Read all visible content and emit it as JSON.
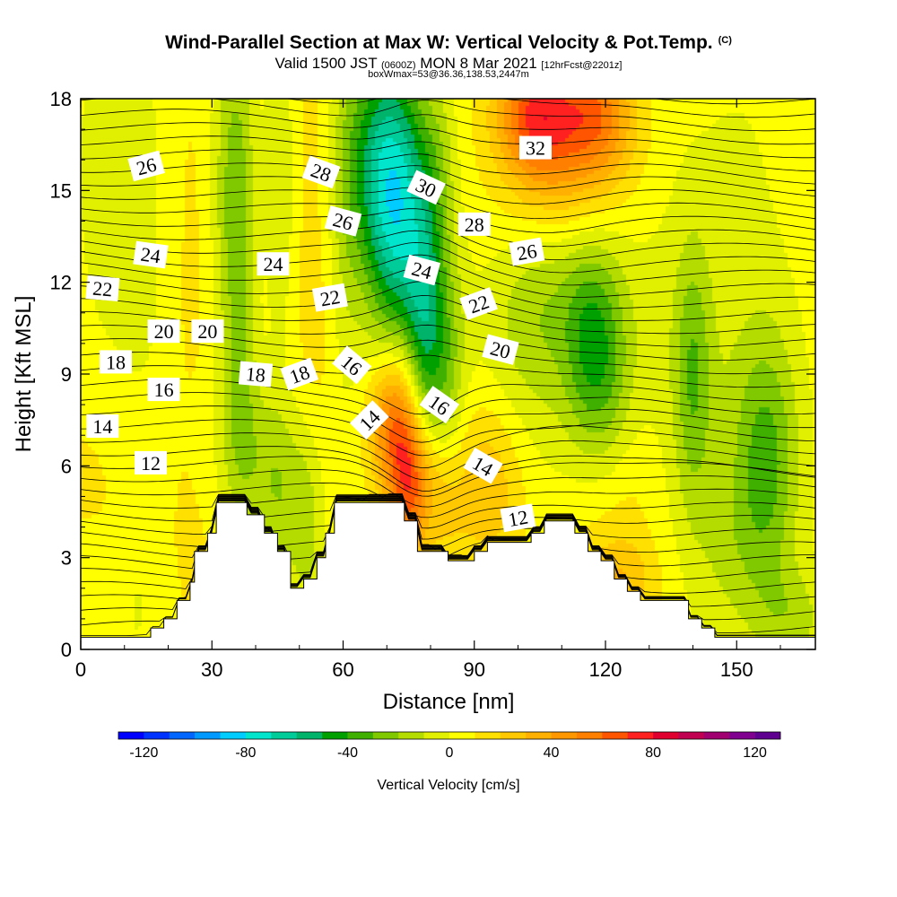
{
  "header": {
    "title": "Wind-Parallel Section at Max W: Vertical Velocity & Pot.Temp.",
    "copyright": "(C)",
    "valid_prefix": "Valid 1500 JST",
    "valid_zulu": "(0600Z)",
    "valid_date": "MON 8 Mar 2021",
    "forecast_tag": "[12hrFcst@2201z]",
    "box_info": "boxWmax=53@36.36,138.53,2447m"
  },
  "chart_data": {
    "type": "heatmap",
    "title": "Wind-Parallel Section at Max W: Vertical Velocity & Pot.Temp.",
    "xlabel": "Distance [nm]",
    "ylabel": "Height [Kft MSL]",
    "xlim": [
      0,
      168
    ],
    "ylim": [
      0,
      18
    ],
    "x_ticks": [
      "0",
      "30",
      "60",
      "90",
      "120",
      "150"
    ],
    "x_tick_values": [
      0,
      30,
      60,
      90,
      120,
      150
    ],
    "y_ticks": [
      "0",
      "3",
      "6",
      "9",
      "12",
      "15",
      "18"
    ],
    "y_tick_values": [
      0,
      3,
      6,
      9,
      12,
      15,
      18
    ],
    "colorbar": {
      "label": "Vertical Velocity [cm/s]",
      "min": -130,
      "max": 130,
      "ticks": [
        "-120",
        "-80",
        "-40",
        "0",
        "40",
        "80",
        "120"
      ],
      "tick_values": [
        -120,
        -80,
        -40,
        0,
        40,
        80,
        120
      ],
      "colors": [
        "#0000ff",
        "#0033ff",
        "#0066ff",
        "#0099ff",
        "#00ccff",
        "#00e5cc",
        "#00cc99",
        "#00b36b",
        "#00a000",
        "#40b000",
        "#80c800",
        "#b4dc00",
        "#e0f000",
        "#ffff00",
        "#ffe000",
        "#ffc800",
        "#ffb000",
        "#ff9800",
        "#ff8000",
        "#ff5500",
        "#ff2020",
        "#e00030",
        "#c00050",
        "#a00070",
        "#800090",
        "#600090"
      ]
    },
    "terrain": [
      [
        0,
        0.4
      ],
      [
        16,
        0.4
      ],
      [
        16,
        0.7
      ],
      [
        19,
        0.7
      ],
      [
        19,
        1.0
      ],
      [
        22,
        1.0
      ],
      [
        22,
        1.6
      ],
      [
        25,
        1.6
      ],
      [
        25,
        2.2
      ],
      [
        26,
        2.2
      ],
      [
        26,
        3.2
      ],
      [
        29,
        3.2
      ],
      [
        29,
        3.8
      ],
      [
        31,
        3.8
      ],
      [
        31,
        4.8
      ],
      [
        38,
        4.8
      ],
      [
        38,
        4.4
      ],
      [
        42,
        4.4
      ],
      [
        42,
        3.8
      ],
      [
        45,
        3.8
      ],
      [
        45,
        3.2
      ],
      [
        48,
        3.2
      ],
      [
        48,
        2.0
      ],
      [
        51,
        2.0
      ],
      [
        51,
        2.3
      ],
      [
        54,
        2.3
      ],
      [
        54,
        3.0
      ],
      [
        56,
        3.0
      ],
      [
        56,
        3.8
      ],
      [
        58,
        3.8
      ],
      [
        58,
        4.8
      ],
      [
        74,
        4.8
      ],
      [
        74,
        4.2
      ],
      [
        77,
        4.2
      ],
      [
        77,
        3.2
      ],
      [
        84,
        3.2
      ],
      [
        84,
        2.9
      ],
      [
        90,
        2.9
      ],
      [
        90,
        3.2
      ],
      [
        93,
        3.2
      ],
      [
        93,
        3.5
      ],
      [
        103,
        3.5
      ],
      [
        103,
        3.8
      ],
      [
        106,
        3.8
      ],
      [
        106,
        4.2
      ],
      [
        113,
        4.2
      ],
      [
        113,
        3.8
      ],
      [
        116,
        3.8
      ],
      [
        116,
        3.2
      ],
      [
        119,
        3.2
      ],
      [
        119,
        2.9
      ],
      [
        122,
        2.9
      ],
      [
        122,
        2.3
      ],
      [
        125,
        2.3
      ],
      [
        125,
        1.9
      ],
      [
        128,
        1.9
      ],
      [
        128,
        1.6
      ],
      [
        139,
        1.6
      ],
      [
        139,
        1.0
      ],
      [
        142,
        1.0
      ],
      [
        142,
        0.7
      ],
      [
        145,
        0.7
      ],
      [
        145,
        0.4
      ],
      [
        168,
        0.4
      ]
    ],
    "w_field": [
      {
        "x": 10,
        "y": 4,
        "w": 12,
        "sx": 14,
        "sy": 4
      },
      {
        "x": 2,
        "y": 1.5,
        "w": -10,
        "sx": 5,
        "sy": 2
      },
      {
        "x": 13,
        "y": 2,
        "w": -10,
        "sx": 4,
        "sy": 3
      },
      {
        "x": 17,
        "y": 11,
        "w": -12,
        "sx": 7,
        "sy": 8
      },
      {
        "x": 25,
        "y": 13,
        "w": 12,
        "sx": 6,
        "sy": 6
      },
      {
        "x": 35,
        "y": 15,
        "w": -28,
        "sx": 4,
        "sy": 4
      },
      {
        "x": 37,
        "y": 10,
        "w": -18,
        "sx": 3,
        "sy": 6
      },
      {
        "x": 41,
        "y": 14,
        "w": 14,
        "sx": 3,
        "sy": 5
      },
      {
        "x": 45,
        "y": 15,
        "w": -22,
        "sx": 3,
        "sy": 4
      },
      {
        "x": 37,
        "y": 7,
        "w": -15,
        "sx": 7,
        "sy": 2
      },
      {
        "x": 45,
        "y": 5,
        "w": -22,
        "sx": 4,
        "sy": 2
      },
      {
        "x": 52,
        "y": 4,
        "w": -22,
        "sx": 3,
        "sy": 2.5
      },
      {
        "x": 55,
        "y": 13,
        "w": 12,
        "sx": 6,
        "sy": 7
      },
      {
        "x": 60,
        "y": 12,
        "w": -14,
        "sx": 3,
        "sy": 5
      },
      {
        "x": 66,
        "y": 16,
        "w": -38,
        "sx": 6,
        "sy": 3
      },
      {
        "x": 72,
        "y": 15,
        "w": -45,
        "sx": 5,
        "sy": 3
      },
      {
        "x": 74,
        "y": 12,
        "w": -30,
        "sx": 5,
        "sy": 4
      },
      {
        "x": 79,
        "y": 11,
        "w": -38,
        "sx": 3,
        "sy": 3
      },
      {
        "x": 84,
        "y": 9,
        "w": -24,
        "sx": 3,
        "sy": 3
      },
      {
        "x": 82,
        "y": 16,
        "w": -14,
        "sx": 3,
        "sy": 2
      },
      {
        "x": 73,
        "y": 6.8,
        "w": 55,
        "sx": 3,
        "sy": 2.2
      },
      {
        "x": 76,
        "y": 5.3,
        "w": 30,
        "sx": 2.5,
        "sy": 2
      },
      {
        "x": 69,
        "y": 7.5,
        "w": 28,
        "sx": 3,
        "sy": 1.5
      },
      {
        "x": 80,
        "y": 5.5,
        "w": 24,
        "sx": 4,
        "sy": 1.5
      },
      {
        "x": 93,
        "y": 5.5,
        "w": 24,
        "sx": 6,
        "sy": 2
      },
      {
        "x": 84,
        "y": 4,
        "w": 8,
        "sx": 3,
        "sy": 2
      },
      {
        "x": 104,
        "y": 17.5,
        "w": 52,
        "sx": 6,
        "sy": 1.5
      },
      {
        "x": 118,
        "y": 17.5,
        "w": 38,
        "sx": 6,
        "sy": 1.5
      },
      {
        "x": 111,
        "y": 16,
        "w": 28,
        "sx": 10,
        "sy": 2.5
      },
      {
        "x": 104,
        "y": 10,
        "w": -18,
        "sx": 10,
        "sy": 3
      },
      {
        "x": 116,
        "y": 10,
        "w": -30,
        "sx": 4,
        "sy": 2.5
      },
      {
        "x": 121,
        "y": 9,
        "w": -22,
        "sx": 4,
        "sy": 3
      },
      {
        "x": 108,
        "y": 12,
        "w": -14,
        "sx": 7,
        "sy": 2
      },
      {
        "x": 130,
        "y": 11,
        "w": -8,
        "sx": 8,
        "sy": 4
      },
      {
        "x": 140,
        "y": 9,
        "w": -28,
        "sx": 3,
        "sy": 3
      },
      {
        "x": 157,
        "y": 6,
        "w": -32,
        "sx": 5,
        "sy": 3
      },
      {
        "x": 150,
        "y": 7,
        "w": -12,
        "sx": 10,
        "sy": 4
      },
      {
        "x": 148,
        "y": 3,
        "w": -10,
        "sx": 6,
        "sy": 2
      },
      {
        "x": 122,
        "y": 5,
        "w": 14,
        "sx": 6,
        "sy": 2
      },
      {
        "x": 123,
        "y": 2.2,
        "w": 22,
        "sx": 6,
        "sy": 1
      },
      {
        "x": 163,
        "y": 1,
        "w": -18,
        "sx": 6,
        "sy": 1.2
      },
      {
        "x": 150,
        "y": 16,
        "w": -6,
        "sx": 10,
        "sy": 4
      },
      {
        "x": 5,
        "y": 15,
        "w": -8,
        "sx": 6,
        "sy": 6
      }
    ],
    "theta_labels": [
      {
        "text": "26",
        "x": 15,
        "y": 15.8,
        "rot": -15
      },
      {
        "text": "28",
        "x": 55,
        "y": 15.6,
        "rot": 20
      },
      {
        "text": "30",
        "x": 79,
        "y": 15.1,
        "rot": 25
      },
      {
        "text": "32",
        "x": 104,
        "y": 16.4,
        "rot": 0
      },
      {
        "text": "26",
        "x": 60,
        "y": 14.0,
        "rot": 15
      },
      {
        "text": "28",
        "x": 90,
        "y": 13.9,
        "rot": 0
      },
      {
        "text": "26",
        "x": 102,
        "y": 13.0,
        "rot": -10
      },
      {
        "text": "24",
        "x": 16,
        "y": 12.9,
        "rot": 8
      },
      {
        "text": "24",
        "x": 44,
        "y": 12.6,
        "rot": 0
      },
      {
        "text": "24",
        "x": 78,
        "y": 12.4,
        "rot": 15
      },
      {
        "text": "22",
        "x": 5,
        "y": 11.8,
        "rot": 5
      },
      {
        "text": "22",
        "x": 57,
        "y": 11.5,
        "rot": -10
      },
      {
        "text": "22",
        "x": 91,
        "y": 11.3,
        "rot": -20
      },
      {
        "text": "20",
        "x": 19,
        "y": 10.4,
        "rot": 0
      },
      {
        "text": "20",
        "x": 29,
        "y": 10.4,
        "rot": 0
      },
      {
        "text": "20",
        "x": 96,
        "y": 9.8,
        "rot": 15
      },
      {
        "text": "18",
        "x": 8,
        "y": 9.4,
        "rot": 0
      },
      {
        "text": "18",
        "x": 40,
        "y": 9.0,
        "rot": 5
      },
      {
        "text": "18",
        "x": 50,
        "y": 9.0,
        "rot": -20
      },
      {
        "text": "16",
        "x": 62,
        "y": 9.3,
        "rot": 40
      },
      {
        "text": "16",
        "x": 82,
        "y": 8.0,
        "rot": 35
      },
      {
        "text": "16",
        "x": 19,
        "y": 8.5,
        "rot": 0
      },
      {
        "text": "14",
        "x": 66,
        "y": 7.5,
        "rot": -45
      },
      {
        "text": "14",
        "x": 5,
        "y": 7.3,
        "rot": 0
      },
      {
        "text": "14",
        "x": 92,
        "y": 6.0,
        "rot": 30
      },
      {
        "text": "12",
        "x": 16,
        "y": 6.1,
        "rot": 0
      },
      {
        "text": "12",
        "x": 100,
        "y": 4.3,
        "rot": -10
      }
    ]
  }
}
